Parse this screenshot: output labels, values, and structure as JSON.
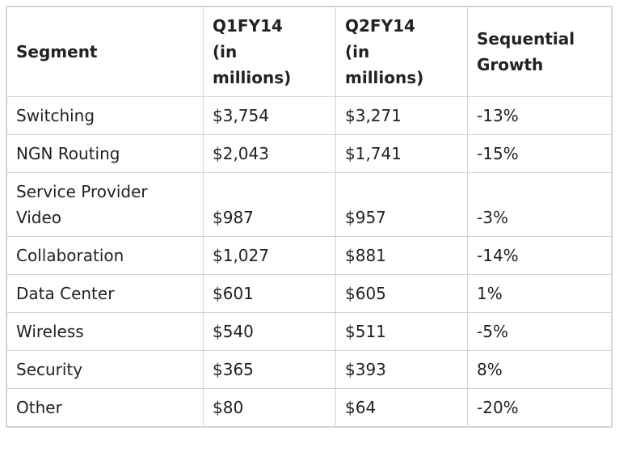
{
  "table": {
    "header": [
      "Segment",
      "Q1FY14 (in millions)",
      "Q2FY14 (in millions)",
      "Sequential Growth"
    ],
    "rows": [
      [
        "Switching",
        "$3,754",
        "$3,271",
        "-13%"
      ],
      [
        "NGN Routing",
        "$2,043",
        "$1,741",
        "-15%"
      ],
      [
        "Service Provider Video",
        "$987",
        "$957",
        "-3%"
      ],
      [
        "Collaboration",
        "$1,027",
        "$881",
        "-14%"
      ],
      [
        "Data Center",
        "$601",
        "$605",
        "1%"
      ],
      [
        "Wireless",
        "$540",
        "$511",
        "-5%"
      ],
      [
        "Security",
        "$365",
        "$393",
        "8%"
      ],
      [
        "Other",
        "$80",
        "$64",
        "-20%"
      ]
    ]
  }
}
